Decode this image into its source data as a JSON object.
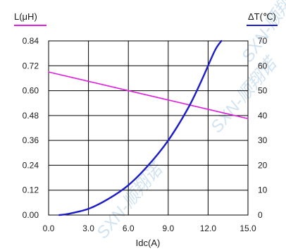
{
  "chart_data": {
    "type": "line",
    "xlabel": "Idc(A)",
    "x_ticks": [
      "0.0",
      "3.0",
      "6.0",
      "9.0",
      "12.0",
      "15.0"
    ],
    "xlim": [
      0,
      15
    ],
    "left_axis": {
      "label": "L(μH)",
      "ylim": [
        0,
        0.84
      ],
      "ticks": [
        "0.00",
        "0.12",
        "0.24",
        "0.36",
        "0.48",
        "0.60",
        "0.72",
        "0.84"
      ],
      "color": "#e020e0"
    },
    "right_axis": {
      "label": "ΔT(℃)",
      "ylim": [
        0,
        70
      ],
      "ticks": [
        "0",
        "10",
        "20",
        "30",
        "40",
        "50",
        "60",
        "70"
      ],
      "color": "#1c1cc8"
    },
    "grid": true,
    "series": [
      {
        "axis": "left",
        "color": "#e020e0",
        "x": [
          0,
          3,
          6,
          9,
          12,
          15
        ],
        "y": [
          0.69,
          0.645,
          0.6,
          0.555,
          0.51,
          0.465
        ]
      },
      {
        "axis": "right",
        "color": "#1c1cc8",
        "x": [
          0.8,
          1.5,
          3,
          4.5,
          6,
          7.5,
          9,
          10.5,
          11.5,
          12.5,
          13
        ],
        "y": [
          0,
          0.5,
          2.5,
          6.5,
          12,
          20,
          30,
          43,
          54,
          66,
          70
        ]
      }
    ]
  },
  "watermark": {
    "texts": [
      "SXN-顺翔诺",
      "SXN-顺翔诺",
      "SXN-顺翔诺"
    ]
  }
}
